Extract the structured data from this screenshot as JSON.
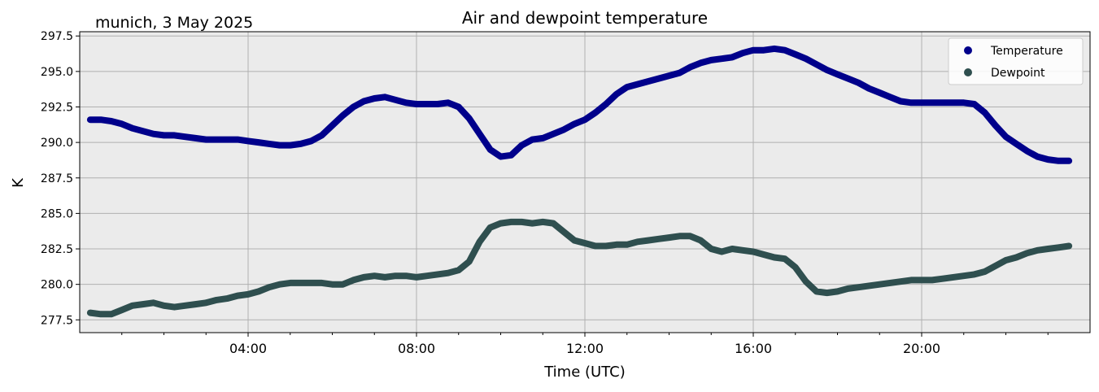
{
  "chart_data": {
    "type": "line",
    "title": "Air and dewpoint temperature",
    "location_label": "munich, 3 May 2025",
    "xlabel": "Time (UTC)",
    "ylabel": "K",
    "xlim": [
      0,
      24
    ],
    "ylim": [
      276.6,
      297.8
    ],
    "x_ticks": [
      {
        "x": 4,
        "label": "04:00"
      },
      {
        "x": 8,
        "label": "08:00"
      },
      {
        "x": 12,
        "label": "12:00"
      },
      {
        "x": 16,
        "label": "16:00"
      },
      {
        "x": 20,
        "label": "20:00"
      }
    ],
    "y_ticks": [
      {
        "y": 277.5,
        "label": "277.5"
      },
      {
        "y": 280.0,
        "label": "280.0"
      },
      {
        "y": 282.5,
        "label": "282.5"
      },
      {
        "y": 285.0,
        "label": "285.0"
      },
      {
        "y": 287.5,
        "label": "287.5"
      },
      {
        "y": 290.0,
        "label": "290.0"
      },
      {
        "y": 292.5,
        "label": "292.5"
      },
      {
        "y": 295.0,
        "label": "295.0"
      },
      {
        "y": 297.5,
        "label": "297.5"
      }
    ],
    "grid": true,
    "legend_position": "top-right",
    "colors": {
      "plot_background": "#ebebeb",
      "grid": "#b0b0b0",
      "temperature_smoothed": "#00008b",
      "temperature_raw": "#7fa8a8",
      "dewpoint_smoothed": "#2f4f4f",
      "dewpoint_raw": "#2a9be8"
    },
    "series": [
      {
        "name": "Temperature",
        "color": "#00008b",
        "x": [
          0.25,
          0.5,
          0.75,
          1.0,
          1.25,
          1.5,
          1.75,
          2.0,
          2.25,
          2.5,
          2.75,
          3.0,
          3.25,
          3.5,
          3.75,
          4.0,
          4.25,
          4.5,
          4.75,
          5.0,
          5.25,
          5.5,
          5.75,
          6.0,
          6.25,
          6.5,
          6.75,
          7.0,
          7.25,
          7.5,
          7.75,
          8.0,
          8.25,
          8.5,
          8.75,
          9.0,
          9.25,
          9.5,
          9.75,
          10.0,
          10.25,
          10.5,
          10.75,
          11.0,
          11.25,
          11.5,
          11.75,
          12.0,
          12.25,
          12.5,
          12.75,
          13.0,
          13.25,
          13.5,
          13.75,
          14.0,
          14.25,
          14.5,
          14.75,
          15.0,
          15.25,
          15.5,
          15.75,
          16.0,
          16.25,
          16.5,
          16.75,
          17.0,
          17.25,
          17.5,
          17.75,
          18.0,
          18.25,
          18.5,
          18.75,
          19.0,
          19.25,
          19.5,
          19.75,
          20.0,
          20.25,
          20.5,
          20.75,
          21.0,
          21.25,
          21.5,
          21.75,
          22.0,
          22.25,
          22.5,
          22.75,
          23.0,
          23.25,
          23.5
        ],
        "values": [
          291.6,
          291.6,
          291.5,
          291.3,
          291.0,
          290.8,
          290.6,
          290.5,
          290.5,
          290.4,
          290.3,
          290.2,
          290.2,
          290.2,
          290.2,
          290.1,
          290.0,
          289.9,
          289.8,
          289.8,
          289.9,
          290.1,
          290.5,
          291.2,
          291.9,
          292.5,
          292.9,
          293.1,
          293.2,
          293.0,
          292.8,
          292.7,
          292.7,
          292.7,
          292.8,
          292.5,
          291.7,
          290.6,
          289.5,
          289.0,
          289.1,
          289.8,
          290.2,
          290.3,
          290.6,
          290.9,
          291.3,
          291.6,
          292.1,
          292.7,
          293.4,
          293.9,
          294.1,
          294.3,
          294.5,
          294.7,
          294.9,
          295.3,
          295.6,
          295.8,
          295.9,
          296.0,
          296.3,
          296.5,
          296.5,
          296.6,
          296.5,
          296.2,
          295.9,
          295.5,
          295.1,
          294.8,
          294.5,
          294.2,
          293.8,
          293.5,
          293.2,
          292.9,
          292.8,
          292.8,
          292.8,
          292.8,
          292.8,
          292.8,
          292.7,
          292.1,
          291.2,
          290.4,
          289.9,
          289.4,
          289.0,
          288.8,
          288.7,
          288.7
        ]
      },
      {
        "name": "Dewpoint",
        "color": "#2f4f4f",
        "x": [
          0.25,
          0.5,
          0.75,
          1.0,
          1.25,
          1.5,
          1.75,
          2.0,
          2.25,
          2.5,
          2.75,
          3.0,
          3.25,
          3.5,
          3.75,
          4.0,
          4.25,
          4.5,
          4.75,
          5.0,
          5.25,
          5.5,
          5.75,
          6.0,
          6.25,
          6.5,
          6.75,
          7.0,
          7.25,
          7.5,
          7.75,
          8.0,
          8.25,
          8.5,
          8.75,
          9.0,
          9.25,
          9.5,
          9.75,
          10.0,
          10.25,
          10.5,
          10.75,
          11.0,
          11.25,
          11.5,
          11.75,
          12.0,
          12.25,
          12.5,
          12.75,
          13.0,
          13.25,
          13.5,
          13.75,
          14.0,
          14.25,
          14.5,
          14.75,
          15.0,
          15.25,
          15.5,
          15.75,
          16.0,
          16.25,
          16.5,
          16.75,
          17.0,
          17.25,
          17.5,
          17.75,
          18.0,
          18.25,
          18.5,
          18.75,
          19.0,
          19.25,
          19.5,
          19.75,
          20.0,
          20.25,
          20.5,
          20.75,
          21.0,
          21.25,
          21.5,
          21.75,
          22.0,
          22.25,
          22.5,
          22.75,
          23.0,
          23.25,
          23.5
        ],
        "values": [
          278.0,
          277.9,
          277.9,
          278.2,
          278.5,
          278.6,
          278.7,
          278.5,
          278.4,
          278.5,
          278.6,
          278.7,
          278.9,
          279.0,
          279.2,
          279.3,
          279.5,
          279.8,
          280.0,
          280.1,
          280.1,
          280.1,
          280.1,
          280.0,
          280.0,
          280.3,
          280.5,
          280.6,
          280.5,
          280.6,
          280.6,
          280.5,
          280.6,
          280.7,
          280.8,
          281.0,
          281.6,
          283.0,
          284.0,
          284.3,
          284.4,
          284.4,
          284.3,
          284.4,
          284.3,
          283.7,
          283.1,
          282.9,
          282.7,
          282.7,
          282.8,
          282.8,
          283.0,
          283.1,
          283.2,
          283.3,
          283.4,
          283.4,
          283.1,
          282.5,
          282.3,
          282.5,
          282.4,
          282.3,
          282.1,
          281.9,
          281.8,
          281.2,
          280.2,
          279.5,
          279.4,
          279.5,
          279.7,
          279.8,
          279.9,
          280.0,
          280.1,
          280.2,
          280.3,
          280.3,
          280.3,
          280.4,
          280.5,
          280.6,
          280.7,
          280.9,
          281.3,
          281.7,
          281.9,
          282.2,
          282.4,
          282.5,
          282.6,
          282.7
        ]
      }
    ]
  }
}
